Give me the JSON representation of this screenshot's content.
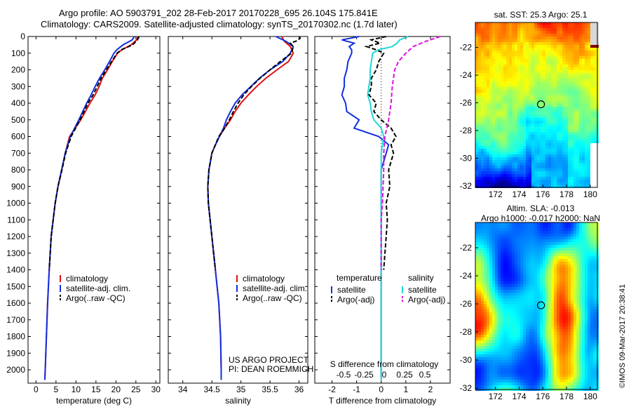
{
  "header": {
    "line1": "Argo profile: AO 5903791_202 28-Feb-2017 20170228_695 26.104S 175.841E",
    "line2": "Climatology: CARS2009. Satellite-adjusted climatology: synTS_20170302.nc (1.7d later)"
  },
  "credit": "©IMOS 09-Mar-2017 20:38:41",
  "colors": {
    "clim": "#e01010",
    "sat": "#1030e0",
    "argo": "#000000",
    "sat_s": "#20d8d8",
    "argo_s": "#e010e0"
  },
  "chart_data": [
    {
      "id": "temperature",
      "type": "line",
      "xlabel": "temperature (deg C)",
      "ylabel": "",
      "xlim": [
        -2,
        31
      ],
      "ylim": [
        2080,
        0
      ],
      "xticks": [
        0,
        5,
        10,
        15,
        20,
        25,
        30
      ],
      "yticks": [
        0,
        100,
        200,
        300,
        400,
        500,
        600,
        700,
        800,
        900,
        1000,
        1100,
        1200,
        1300,
        1400,
        1500,
        1600,
        1700,
        1800,
        1900,
        2000
      ],
      "legend": [
        "climatology",
        "satellite-adj. clim.",
        "Argo(..raw -QC)"
      ],
      "series": [
        {
          "name": "climatology",
          "color": "clim",
          "depth": [
            0,
            20,
            50,
            80,
            100,
            150,
            200,
            250,
            300,
            350,
            400,
            500,
            600,
            700,
            800,
            900,
            1000,
            1200,
            1400,
            1600,
            1800,
            2000,
            2060
          ],
          "values": [
            25.5,
            25.2,
            23.8,
            21.5,
            20.4,
            19.1,
            17.9,
            16.6,
            15.8,
            14.8,
            13.5,
            11.2,
            8.4,
            7.3,
            6.4,
            5.5,
            4.8,
            3.8,
            3.3,
            2.9,
            2.6,
            2.3,
            2.2
          ]
        },
        {
          "name": "satellite-adj. clim.",
          "color": "sat",
          "depth": [
            0,
            20,
            50,
            80,
            100,
            150,
            200,
            250,
            300,
            350,
            400,
            500,
            600,
            700,
            800,
            900,
            1000,
            1200,
            1400,
            1600,
            1800,
            2000,
            2060
          ],
          "values": [
            24.6,
            24.1,
            21.8,
            20.2,
            19.5,
            18.4,
            17.2,
            15.9,
            14.8,
            13.8,
            12.7,
            10.7,
            8.6,
            7.3,
            6.4,
            5.5,
            4.8,
            3.8,
            3.3,
            2.9,
            2.6,
            2.3,
            2.2
          ]
        },
        {
          "name": "Argo(..raw -QC)",
          "color": "argo",
          "dash": true,
          "depth": [
            0,
            20,
            50,
            80,
            100,
            150,
            200,
            250,
            300,
            350,
            400,
            500,
            600,
            700,
            800,
            900,
            1000,
            1200,
            1400
          ],
          "values": [
            25.8,
            25.4,
            24.2,
            21.3,
            20.3,
            18.9,
            17.6,
            16.3,
            15.3,
            14.3,
            13.0,
            11.0,
            8.8,
            7.4,
            6.5,
            5.5,
            4.8,
            3.8,
            3.3
          ]
        }
      ]
    },
    {
      "id": "salinity",
      "type": "line",
      "xlabel": "salinity",
      "ylabel": "",
      "xlim": [
        33.75,
        36.15
      ],
      "ylim": [
        2080,
        0
      ],
      "xticks": [
        34,
        34.5,
        35,
        35.5,
        36
      ],
      "legend": [
        "climatology",
        "satellite-adj. clim.",
        "Argo(..raw -QC)"
      ],
      "annotation": [
        "US ARGO PROJECT",
        "PI: DEAN ROEMMICH"
      ],
      "series": [
        {
          "name": "climatology",
          "color": "clim",
          "depth": [
            0,
            30,
            60,
            100,
            150,
            200,
            250,
            300,
            350,
            400,
            450,
            500,
            550,
            600,
            650,
            700,
            800,
            900,
            1000,
            1100,
            1200,
            1400,
            1600,
            1800,
            2000,
            2060
          ],
          "values": [
            35.7,
            35.75,
            35.85,
            35.9,
            35.82,
            35.62,
            35.43,
            35.27,
            35.13,
            35.0,
            34.9,
            34.82,
            34.72,
            34.63,
            34.56,
            34.5,
            34.45,
            34.43,
            34.44,
            34.47,
            34.5,
            34.56,
            34.62,
            34.65,
            34.66,
            34.66
          ]
        },
        {
          "name": "satellite-adj. clim.",
          "color": "sat",
          "depth": [
            0,
            30,
            60,
            100,
            150,
            200,
            250,
            300,
            350,
            400,
            450,
            500,
            550,
            600,
            650,
            700,
            800,
            900,
            1000,
            1100,
            1200,
            1400,
            1600,
            1800,
            2000,
            2060
          ],
          "values": [
            35.6,
            35.78,
            35.9,
            35.85,
            35.72,
            35.5,
            35.32,
            35.17,
            35.02,
            34.9,
            34.82,
            34.75,
            34.7,
            34.63,
            34.56,
            34.5,
            34.45,
            34.43,
            34.44,
            34.47,
            34.5,
            34.56,
            34.62,
            34.65,
            34.66,
            34.66
          ]
        },
        {
          "name": "Argo(..raw -QC)",
          "color": "argo",
          "dash": true,
          "depth": [
            0,
            10,
            25,
            40,
            60,
            100,
            150,
            200,
            250,
            300,
            350,
            400,
            450,
            500,
            550,
            600,
            650,
            700,
            800,
            900,
            1000,
            1200,
            1400
          ],
          "values": [
            36.0,
            36.02,
            35.97,
            35.85,
            35.9,
            35.87,
            35.68,
            35.5,
            35.33,
            35.18,
            35.05,
            34.95,
            34.87,
            34.8,
            34.72,
            34.62,
            34.56,
            34.5,
            34.45,
            34.43,
            34.44,
            34.5,
            34.56
          ]
        }
      ]
    },
    {
      "id": "difference",
      "type": "line",
      "xlabel": "T difference from climatology",
      "xlabel2": "S difference from climatology",
      "xlim": [
        -2.7,
        2.8
      ],
      "ylim": [
        2080,
        0
      ],
      "xticks": [
        -2,
        -1,
        0,
        1,
        2
      ],
      "xticks2": [
        {
          "v": -0.5,
          "label": "-0.5"
        },
        {
          "v": -0.25,
          "label": "-0.25"
        },
        {
          "v": 0,
          "label": "0"
        },
        {
          "v": 0.25,
          "label": "0.25"
        },
        {
          "v": 0.5,
          "label": "0.5"
        }
      ],
      "legend_t_title": "temperature",
      "legend_s_title": "salinity",
      "legend_t": [
        "satellite",
        "Argo(-adj)"
      ],
      "legend_s": [
        "satellite",
        "Argo(-adj)"
      ],
      "series": [
        {
          "name": "T satellite",
          "color": "sat",
          "depth": [
            0,
            20,
            40,
            60,
            80,
            100,
            150,
            200,
            250,
            300,
            350,
            400,
            450,
            500,
            550,
            600,
            650,
            700,
            800,
            1000,
            1200,
            1500,
            2000,
            2060
          ],
          "values": [
            -0.9,
            -1.6,
            -1.1,
            -1.3,
            -1.2,
            -1.2,
            -1.35,
            -1.4,
            -1.5,
            -1.5,
            -1.6,
            -1.45,
            -1.4,
            -0.9,
            -1.1,
            -0.1,
            0.3,
            0.2,
            0.0,
            0.0,
            0.0,
            0.0,
            0.0,
            0.0
          ]
        },
        {
          "name": "T Argo(-adj)",
          "color": "argo",
          "dash": true,
          "depth": [
            0,
            20,
            40,
            60,
            80,
            100,
            150,
            200,
            250,
            300,
            350,
            400,
            450,
            500,
            550,
            600,
            650,
            700,
            800,
            900,
            1000,
            1100,
            1200,
            1400
          ],
          "values": [
            0.2,
            -0.4,
            -0.05,
            -0.6,
            -0.2,
            0.1,
            -0.1,
            -0.2,
            -0.4,
            -0.4,
            -0.5,
            -0.2,
            -0.3,
            0.0,
            0.4,
            0.6,
            0.4,
            0.5,
            0.3,
            0.35,
            0.2,
            0.25,
            0.2,
            0.1
          ]
        },
        {
          "name": "S satellite",
          "color": "sat_s",
          "depth": [
            0,
            20,
            40,
            60,
            80,
            100,
            150,
            200,
            250,
            300,
            350,
            400,
            450,
            500,
            550,
            600,
            650,
            700,
            800,
            1000,
            1200,
            1500,
            2000,
            2060
          ],
          "values": [
            1.1,
            0.75,
            0.65,
            0.45,
            -0.1,
            -0.35,
            -0.4,
            -0.45,
            -0.45,
            -0.5,
            -0.55,
            -0.45,
            -0.4,
            -0.3,
            0.0,
            0.1,
            0.05,
            0.0,
            0.0,
            0.0,
            0.0,
            0.0,
            0.0,
            0.0
          ]
        },
        {
          "name": "S Argo(-adj)",
          "color": "argo_s",
          "dash": true,
          "depth": [
            0,
            30,
            60,
            100,
            150,
            200,
            300,
            400,
            500,
            600,
            700,
            800,
            1000,
            1100,
            1200,
            1400
          ],
          "values": [
            2.4,
            1.8,
            1.3,
            1.0,
            0.7,
            0.55,
            0.45,
            0.4,
            0.3,
            0.15,
            0.1,
            0.1,
            0.05,
            0.0,
            0.0,
            0.0
          ]
        }
      ]
    },
    {
      "id": "sst_map",
      "type": "heatmap",
      "title": "sat. SST: 25.3 Argo: 25.1",
      "xlim": [
        170.3,
        180.6
      ],
      "ylim": [
        -32.1,
        -20.2
      ],
      "xticks": [
        172,
        174,
        176,
        178,
        180
      ],
      "yticks": [
        -22,
        -24,
        -26,
        -28,
        -30,
        -32
      ],
      "marker": {
        "lon": 175.841,
        "lat": -26.104
      }
    },
    {
      "id": "sla_map",
      "type": "heatmap",
      "title": "Altim. SLA: -0.013",
      "title2": "Argo h1000: -0.017 h2000: NaN",
      "xlim": [
        170.3,
        180.6
      ],
      "ylim": [
        -32.1,
        -20.2
      ],
      "xticks": [
        172,
        174,
        176,
        178,
        180
      ],
      "yticks": [
        -22,
        -24,
        -26,
        -28,
        -30,
        -32
      ],
      "marker": {
        "lon": 175.841,
        "lat": -26.104
      }
    }
  ]
}
